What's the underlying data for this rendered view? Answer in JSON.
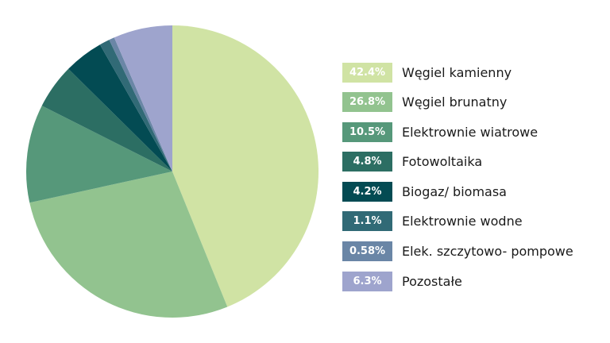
{
  "chart_data": {
    "type": "pie",
    "slices": [
      {
        "label": "Węgiel kamienny",
        "value": 42.4,
        "value_label": "42.4%",
        "color": "#d0e3a4"
      },
      {
        "label": "Węgiel brunatny",
        "value": 26.8,
        "value_label": "26.8%",
        "color": "#92c38f"
      },
      {
        "label": "Elektrownie wiatrowe",
        "value": 10.5,
        "value_label": "10.5%",
        "color": "#56987a"
      },
      {
        "label": "Fotowoltaika",
        "value": 4.8,
        "value_label": "4.8%",
        "color": "#2c6e63"
      },
      {
        "label": "Biogaz/ biomasa",
        "value": 4.2,
        "value_label": "4.2%",
        "color": "#034b53"
      },
      {
        "label": "Elektrownie wodne",
        "value": 1.1,
        "value_label": "1.1%",
        "color": "#316a76"
      },
      {
        "label": "Elek. szczytowo- pompowe",
        "value": 0.58,
        "value_label": "0.58%",
        "color": "#6a86a6"
      },
      {
        "label": "Pozostałe",
        "value": 6.3,
        "value_label": "6.3%",
        "color": "#9ea4cd"
      }
    ],
    "legend_placement": "right"
  }
}
